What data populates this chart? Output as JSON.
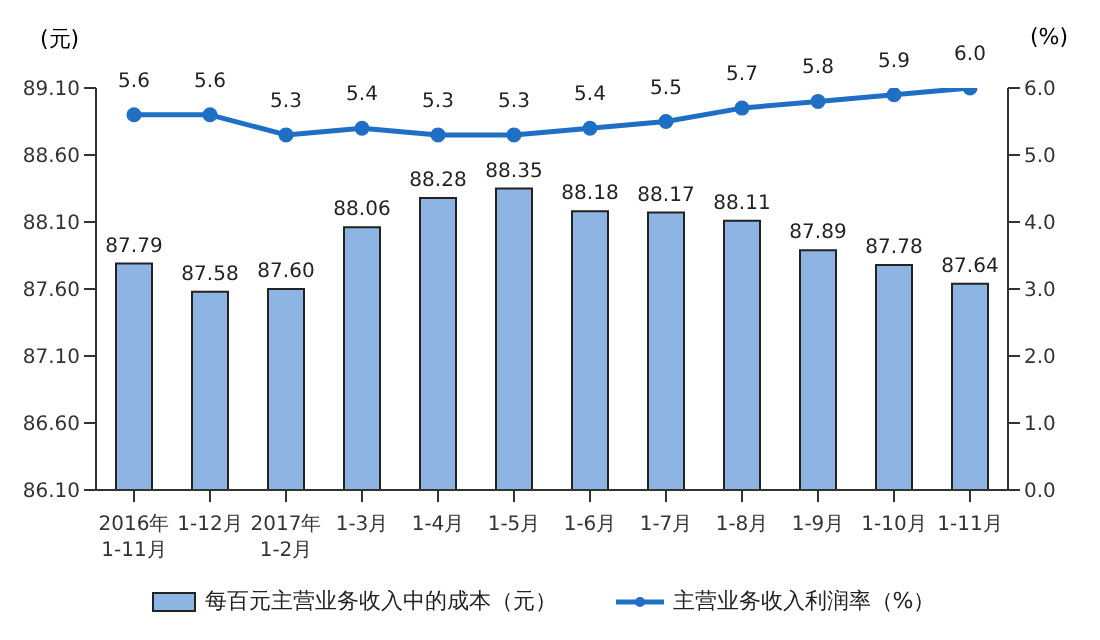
{
  "chart_data": {
    "type": "bar",
    "ylabel": "(元)",
    "y2label": "(%)",
    "categories": [
      "2016年\n1-11月",
      "1-12月",
      "2017年\n1-2月",
      "1-3月",
      "1-4月",
      "1-5月",
      "1-6月",
      "1-7月",
      "1-8月",
      "1-9月",
      "1-10月",
      "1-11月"
    ],
    "series": [
      {
        "name": "每百元主营业务收入中的成本（元）",
        "color": "#8db4e2",
        "values": [
          87.79,
          87.58,
          87.6,
          88.06,
          88.28,
          88.35,
          88.18,
          88.17,
          88.11,
          87.89,
          87.78,
          87.64
        ],
        "value_labels": [
          "87.79",
          "87.58",
          "87.60",
          "88.06",
          "88.28",
          "88.35",
          "88.18",
          "88.17",
          "88.11",
          "87.89",
          "87.78",
          "87.64"
        ]
      },
      {
        "name": "主营业务收入利润率（%）",
        "type": "line",
        "axis": "y2",
        "color": "#1f6fc5",
        "marker": "circle",
        "values": [
          5.6,
          5.6,
          5.3,
          5.4,
          5.3,
          5.3,
          5.4,
          5.5,
          5.7,
          5.8,
          5.9,
          6.0
        ],
        "value_labels": [
          "5.6",
          "5.6",
          "5.3",
          "5.4",
          "5.3",
          "5.3",
          "5.4",
          "5.5",
          "5.7",
          "5.8",
          "5.9",
          "6.0"
        ]
      }
    ],
    "ylim": [
      86.1,
      89.1
    ],
    "yticks": [
      {
        "value": 86.1,
        "label": "86.10"
      },
      {
        "value": 86.6,
        "label": "86.60"
      },
      {
        "value": 87.1,
        "label": "87.10"
      },
      {
        "value": 87.6,
        "label": "87.60"
      },
      {
        "value": 88.1,
        "label": "88.10"
      },
      {
        "value": 88.6,
        "label": "88.60"
      },
      {
        "value": 89.1,
        "label": "89.10"
      }
    ],
    "y2lim": [
      0,
      6
    ],
    "y2ticks": [
      {
        "value": 0,
        "label": "0.0"
      },
      {
        "value": 1,
        "label": "1.0"
      },
      {
        "value": 2,
        "label": "2.0"
      },
      {
        "value": 3,
        "label": "3.0"
      },
      {
        "value": 4,
        "label": "4.0"
      },
      {
        "value": 5,
        "label": "5.0"
      },
      {
        "value": 6,
        "label": "6.0"
      }
    ],
    "legend": "bottom"
  }
}
